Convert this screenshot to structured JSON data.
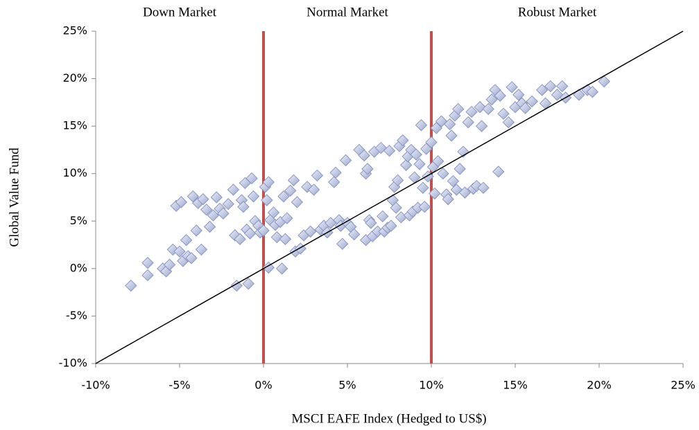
{
  "chart_data": {
    "type": "scatter",
    "xlabel": "MSCI EAFE Index (Hedged to US$)",
    "ylabel": "Global Value Fund",
    "region_labels": [
      "Down Market",
      "Normal Market",
      "Robust Market"
    ],
    "vlines": [
      0,
      10
    ],
    "vline_color": "#c0504d",
    "reference_line": {
      "x": [
        -10,
        25
      ],
      "y": [
        -10,
        25
      ],
      "color": "#000000"
    },
    "color": "#b9c3e3",
    "edge_color": "#8a96c0",
    "xlim": [
      -10,
      25
    ],
    "ylim": [
      -10,
      25
    ],
    "xticks": [
      {
        "value": -10,
        "label": "-10%"
      },
      {
        "value": -5,
        "label": "-5%"
      },
      {
        "value": 0,
        "label": "0%"
      },
      {
        "value": 5,
        "label": "5%"
      },
      {
        "value": 10,
        "label": "10%"
      },
      {
        "value": 15,
        "label": "15%"
      },
      {
        "value": 20,
        "label": "20%"
      },
      {
        "value": 25,
        "label": "25%"
      }
    ],
    "yticks": [
      {
        "value": -10,
        "label": "-10%"
      },
      {
        "value": -5,
        "label": "-5%"
      },
      {
        "value": 0,
        "label": "0%"
      },
      {
        "value": 5,
        "label": "5%"
      },
      {
        "value": 10,
        "label": "10%"
      },
      {
        "value": 15,
        "label": "15%"
      },
      {
        "value": 20,
        "label": "20%"
      },
      {
        "value": 25,
        "label": "25%"
      }
    ],
    "x": [
      -7.9,
      -6.9,
      -6.9,
      -6,
      -5.8,
      -5.6,
      -5.4,
      -5.2,
      -5,
      -4.9,
      -4.8,
      -4.6,
      -4.5,
      -4.3,
      -4.2,
      -4,
      -3.9,
      -3.7,
      -3.6,
      -3.4,
      -3.2,
      -3,
      -2.8,
      -2.6,
      -2.4,
      -2.1,
      -1.8,
      -1.7,
      -1.6,
      -1.4,
      -1.3,
      -1.2,
      -1.1,
      -1,
      -0.9,
      -0.8,
      -0.7,
      -0.6,
      -0.5,
      -0.3,
      -0.2,
      0,
      0.1,
      0.2,
      0.3,
      0.4,
      0.3,
      0.6,
      0.7,
      0.8,
      1,
      1.1,
      1.2,
      1.3,
      1.4,
      1.6,
      1.8,
      1.9,
      2,
      2.2,
      2.4,
      2.6,
      2.8,
      3,
      3.2,
      3.4,
      3.6,
      3.8,
      4,
      4.2,
      4.3,
      4.5,
      4.6,
      4.7,
      4.9,
      5,
      5.2,
      5.4,
      5.7,
      6,
      6.1,
      6.1,
      6.2,
      6.3,
      6.4,
      6.5,
      6.6,
      6.8,
      7,
      7.1,
      7.2,
      7.4,
      7.5,
      7.6,
      7.7,
      7.8,
      7.9,
      8,
      8.1,
      8.2,
      8.3,
      8.5,
      8.6,
      8.7,
      8.8,
      8.9,
      9,
      9.1,
      9.2,
      9.3,
      9.4,
      9.5,
      9.6,
      9.7,
      9.8,
      10,
      10.1,
      10.2,
      10.3,
      10.4,
      10.6,
      10.7,
      10.9,
      11,
      11.1,
      11.2,
      11.3,
      11.4,
      11.5,
      11.6,
      11.7,
      11.9,
      12,
      12.2,
      12.4,
      12.5,
      12.7,
      12.9,
      13,
      13.1,
      13.4,
      13.6,
      13.8,
      14,
      14.1,
      14.3,
      14.6,
      14.8,
      15,
      15.2,
      15.4,
      15.6,
      16,
      16.6,
      16.8,
      17.1,
      17.5,
      17.8,
      18,
      18.8,
      19.3,
      19.6,
      20.3
    ],
    "values": [
      -1.8,
      0.6,
      -0.7,
      0,
      -0.3,
      0.4,
      2,
      6.6,
      1.8,
      7,
      0.8,
      3,
      1.3,
      1.1,
      7.6,
      4,
      6.9,
      2,
      7.3,
      6.2,
      4.4,
      5.6,
      7.5,
      6.3,
      5.8,
      6.8,
      8.3,
      3.5,
      -1.8,
      3.1,
      7.2,
      6.5,
      9,
      4.1,
      -1.6,
      3.7,
      9.5,
      7.6,
      5,
      4.5,
      3.8,
      4,
      8.6,
      7.2,
      9.1,
      5.1,
      0.1,
      5.9,
      4.6,
      3.3,
      4.9,
      0,
      7.6,
      3.1,
      5.3,
      8.2,
      9.3,
      1.8,
      7,
      2.1,
      3.5,
      8.6,
      3.9,
      8.3,
      9.8,
      4.1,
      4.5,
      3.8,
      4.8,
      9.1,
      10.1,
      5.1,
      4.5,
      2.6,
      11.4,
      4.8,
      4.4,
      3.6,
      12.5,
      11.9,
      10,
      3,
      10.5,
      5.1,
      4.8,
      3.4,
      12.3,
      3.9,
      12.7,
      5.5,
      3.9,
      4.3,
      12.4,
      4.5,
      7.2,
      8.6,
      6.4,
      9.3,
      12.9,
      5.4,
      13.5,
      10.9,
      11.8,
      5.6,
      12.5,
      6,
      9.6,
      12,
      6.4,
      11,
      15.1,
      8.5,
      6.5,
      12.6,
      9.7,
      13.3,
      10.7,
      7.9,
      14.8,
      11.3,
      15.5,
      10,
      7.8,
      7.3,
      15.2,
      14,
      9.2,
      16.1,
      8.3,
      16.8,
      10.5,
      12.3,
      8,
      15.4,
      16.5,
      8.4,
      8.7,
      17,
      15,
      8.5,
      16.8,
      17.8,
      18.8,
      10.2,
      18.2,
      16.3,
      15.4,
      19.1,
      17,
      18.3,
      17.4,
      16.9,
      17.6,
      18.8,
      17.4,
      19.2,
      18.3,
      19.2,
      18,
      18.3,
      18.8,
      18.6,
      19.7
    ]
  }
}
